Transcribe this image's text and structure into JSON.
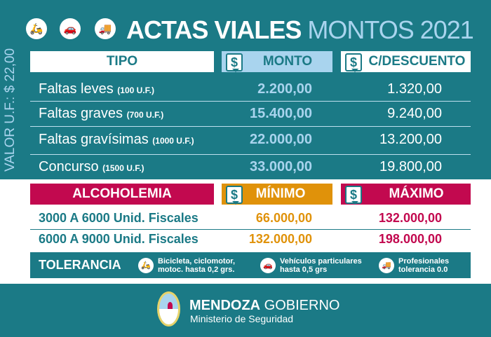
{
  "title": {
    "part1": "ACTAS VIALES",
    "part2": "MONTOS 2021"
  },
  "icons": [
    "scooter-icon",
    "car-icon",
    "truck-icon"
  ],
  "valor_uf": "VALOR U.F.: $ 22,00",
  "table1": {
    "headers": [
      "TIPO",
      "MONTO",
      "C/DESCUENTO"
    ],
    "rows": [
      {
        "label": "Faltas leves",
        "uf": "(100 U.F.)",
        "monto": "2.200,00",
        "descuento": "1.320,00"
      },
      {
        "label": "Faltas graves",
        "uf": "(700 U.F.)",
        "monto": "15.400,00",
        "descuento": "9.240,00"
      },
      {
        "label": "Faltas gravísimas",
        "uf": "(1000 U.F.)",
        "monto": "22.000,00",
        "descuento": "13.200,00"
      },
      {
        "label": "Concurso",
        "uf": "(1500 U.F.)",
        "monto": "33.000,00",
        "descuento": "19.800,00"
      }
    ]
  },
  "table2": {
    "headers": [
      "ALCOHOLEMIA",
      "MÍNIMO",
      "MÁXIMO"
    ],
    "rows": [
      {
        "label": "3000 A 6000 Unid. Fiscales",
        "min": "66.000,00",
        "max": "132.000,00"
      },
      {
        "label": "6000 A 9000 Unid. Fiscales",
        "min": "132.000,00",
        "max": "198.000,00"
      }
    ]
  },
  "tolerancia": {
    "label": "TOLERANCIA",
    "items": [
      {
        "line1": "Bicicleta, ciclomotor,",
        "line2": "motoc. hasta 0,2 grs."
      },
      {
        "line1": "Vehículos particulares",
        "line2": "hasta 0,5 grs"
      },
      {
        "line1": "Profesionales",
        "line2": "tolerancia 0.0"
      }
    ]
  },
  "footer": {
    "brand_bold": "MENDOZA",
    "brand_light": "GOBIERNO",
    "subtitle": "Ministerio de Seguridad"
  },
  "colors": {
    "teal": "#1b7a86",
    "light_blue": "#a9d4ee",
    "crimson": "#c2094f",
    "orange": "#e0920a"
  }
}
